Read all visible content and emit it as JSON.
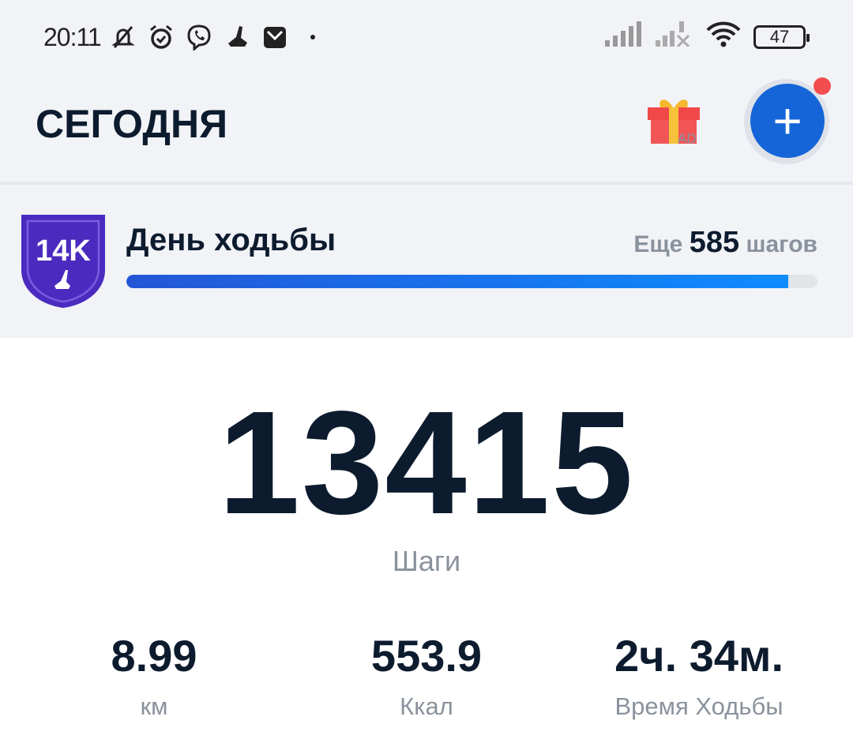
{
  "status_bar": {
    "time": "20:11",
    "battery": "47",
    "icons": [
      "mute-icon",
      "alarm-icon",
      "viber-icon",
      "shoe-icon",
      "mail-icon",
      "dot-icon",
      "signal-icon",
      "signal-no-service-icon",
      "wifi-icon",
      "battery-icon"
    ]
  },
  "header": {
    "title": "СЕГОДНЯ",
    "ad_label": "AD",
    "add_label": "+"
  },
  "challenge": {
    "badge": "14K",
    "title": "День ходьбы",
    "remaining_prefix": "Еще",
    "remaining_value": "585",
    "remaining_suffix": "шагов",
    "progress": 0.958,
    "colors": {
      "badge": "#4b2bbf",
      "bar_start": "#2356d6",
      "bar_end": "#0f8cff"
    }
  },
  "main": {
    "steps": "13415",
    "steps_label": "Шаги",
    "stats": [
      {
        "value": "8.99",
        "label": "км"
      },
      {
        "value": "553.9",
        "label": "Ккал"
      },
      {
        "value": "2ч. 34м.",
        "label": "Время Ходьбы"
      }
    ]
  }
}
